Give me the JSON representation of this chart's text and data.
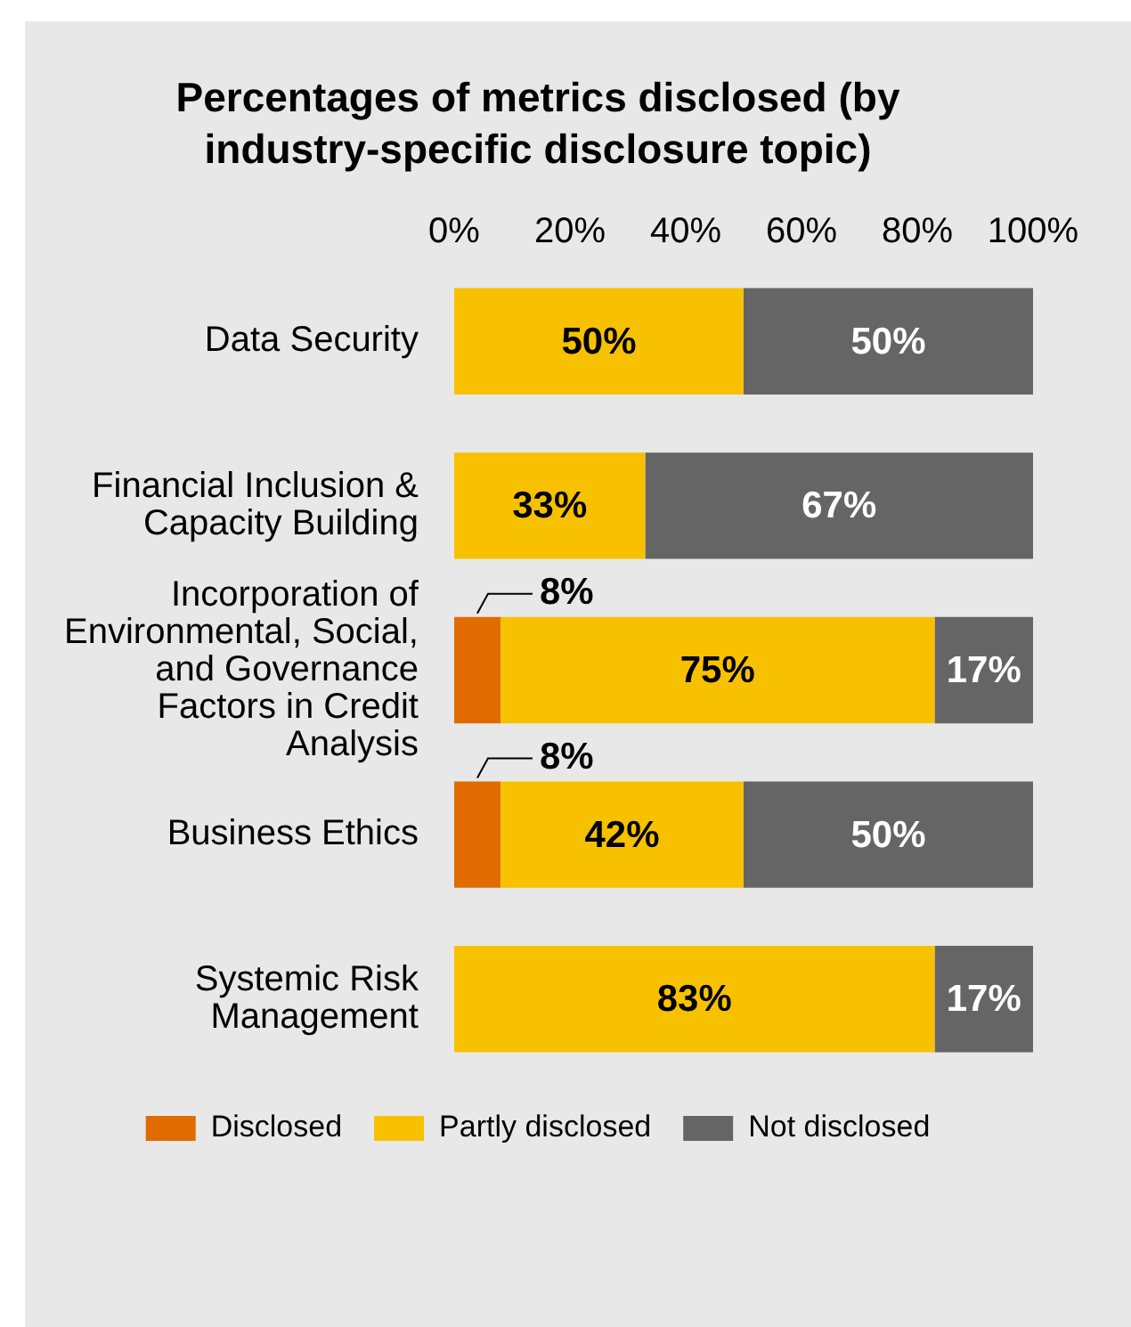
{
  "chart_data": {
    "type": "bar",
    "orientation": "horizontal",
    "stacked": true,
    "title": "Percentages of metrics disclosed (by industry-specific disclosure topic)",
    "categories": [
      "Data Security",
      "Financial Inclusion & Capacity Building",
      "Incorporation of Environmental, Social, and Governance Factors in Credit Analysis",
      "Business Ethics",
      "Systemic Risk Management"
    ],
    "series": [
      {
        "name": "Disclosed",
        "color": "#e06b00",
        "values": [
          0,
          0,
          8,
          8,
          0
        ],
        "value_labels": [
          null,
          null,
          "8%",
          "8%",
          null
        ]
      },
      {
        "name": "Partly disclosed",
        "color": "#f8c100",
        "values": [
          50,
          33,
          75,
          42,
          83
        ],
        "value_labels": [
          "50%",
          "33%",
          "75%",
          "42%",
          "83%"
        ]
      },
      {
        "name": "Not disclosed",
        "color": "#656565",
        "values": [
          50,
          67,
          17,
          50,
          17
        ],
        "value_labels": [
          "50%",
          "67%",
          "17%",
          "50%",
          "17%"
        ]
      }
    ],
    "xlim": [
      0,
      100
    ],
    "xticks": [
      {
        "value": 0,
        "label": "0%"
      },
      {
        "value": 20,
        "label": "20%"
      },
      {
        "value": 40,
        "label": "40%"
      },
      {
        "value": 60,
        "label": "60%"
      },
      {
        "value": 80,
        "label": "80%"
      },
      {
        "value": 100,
        "label": "100%"
      }
    ],
    "grid": false,
    "legend": "bottom"
  }
}
